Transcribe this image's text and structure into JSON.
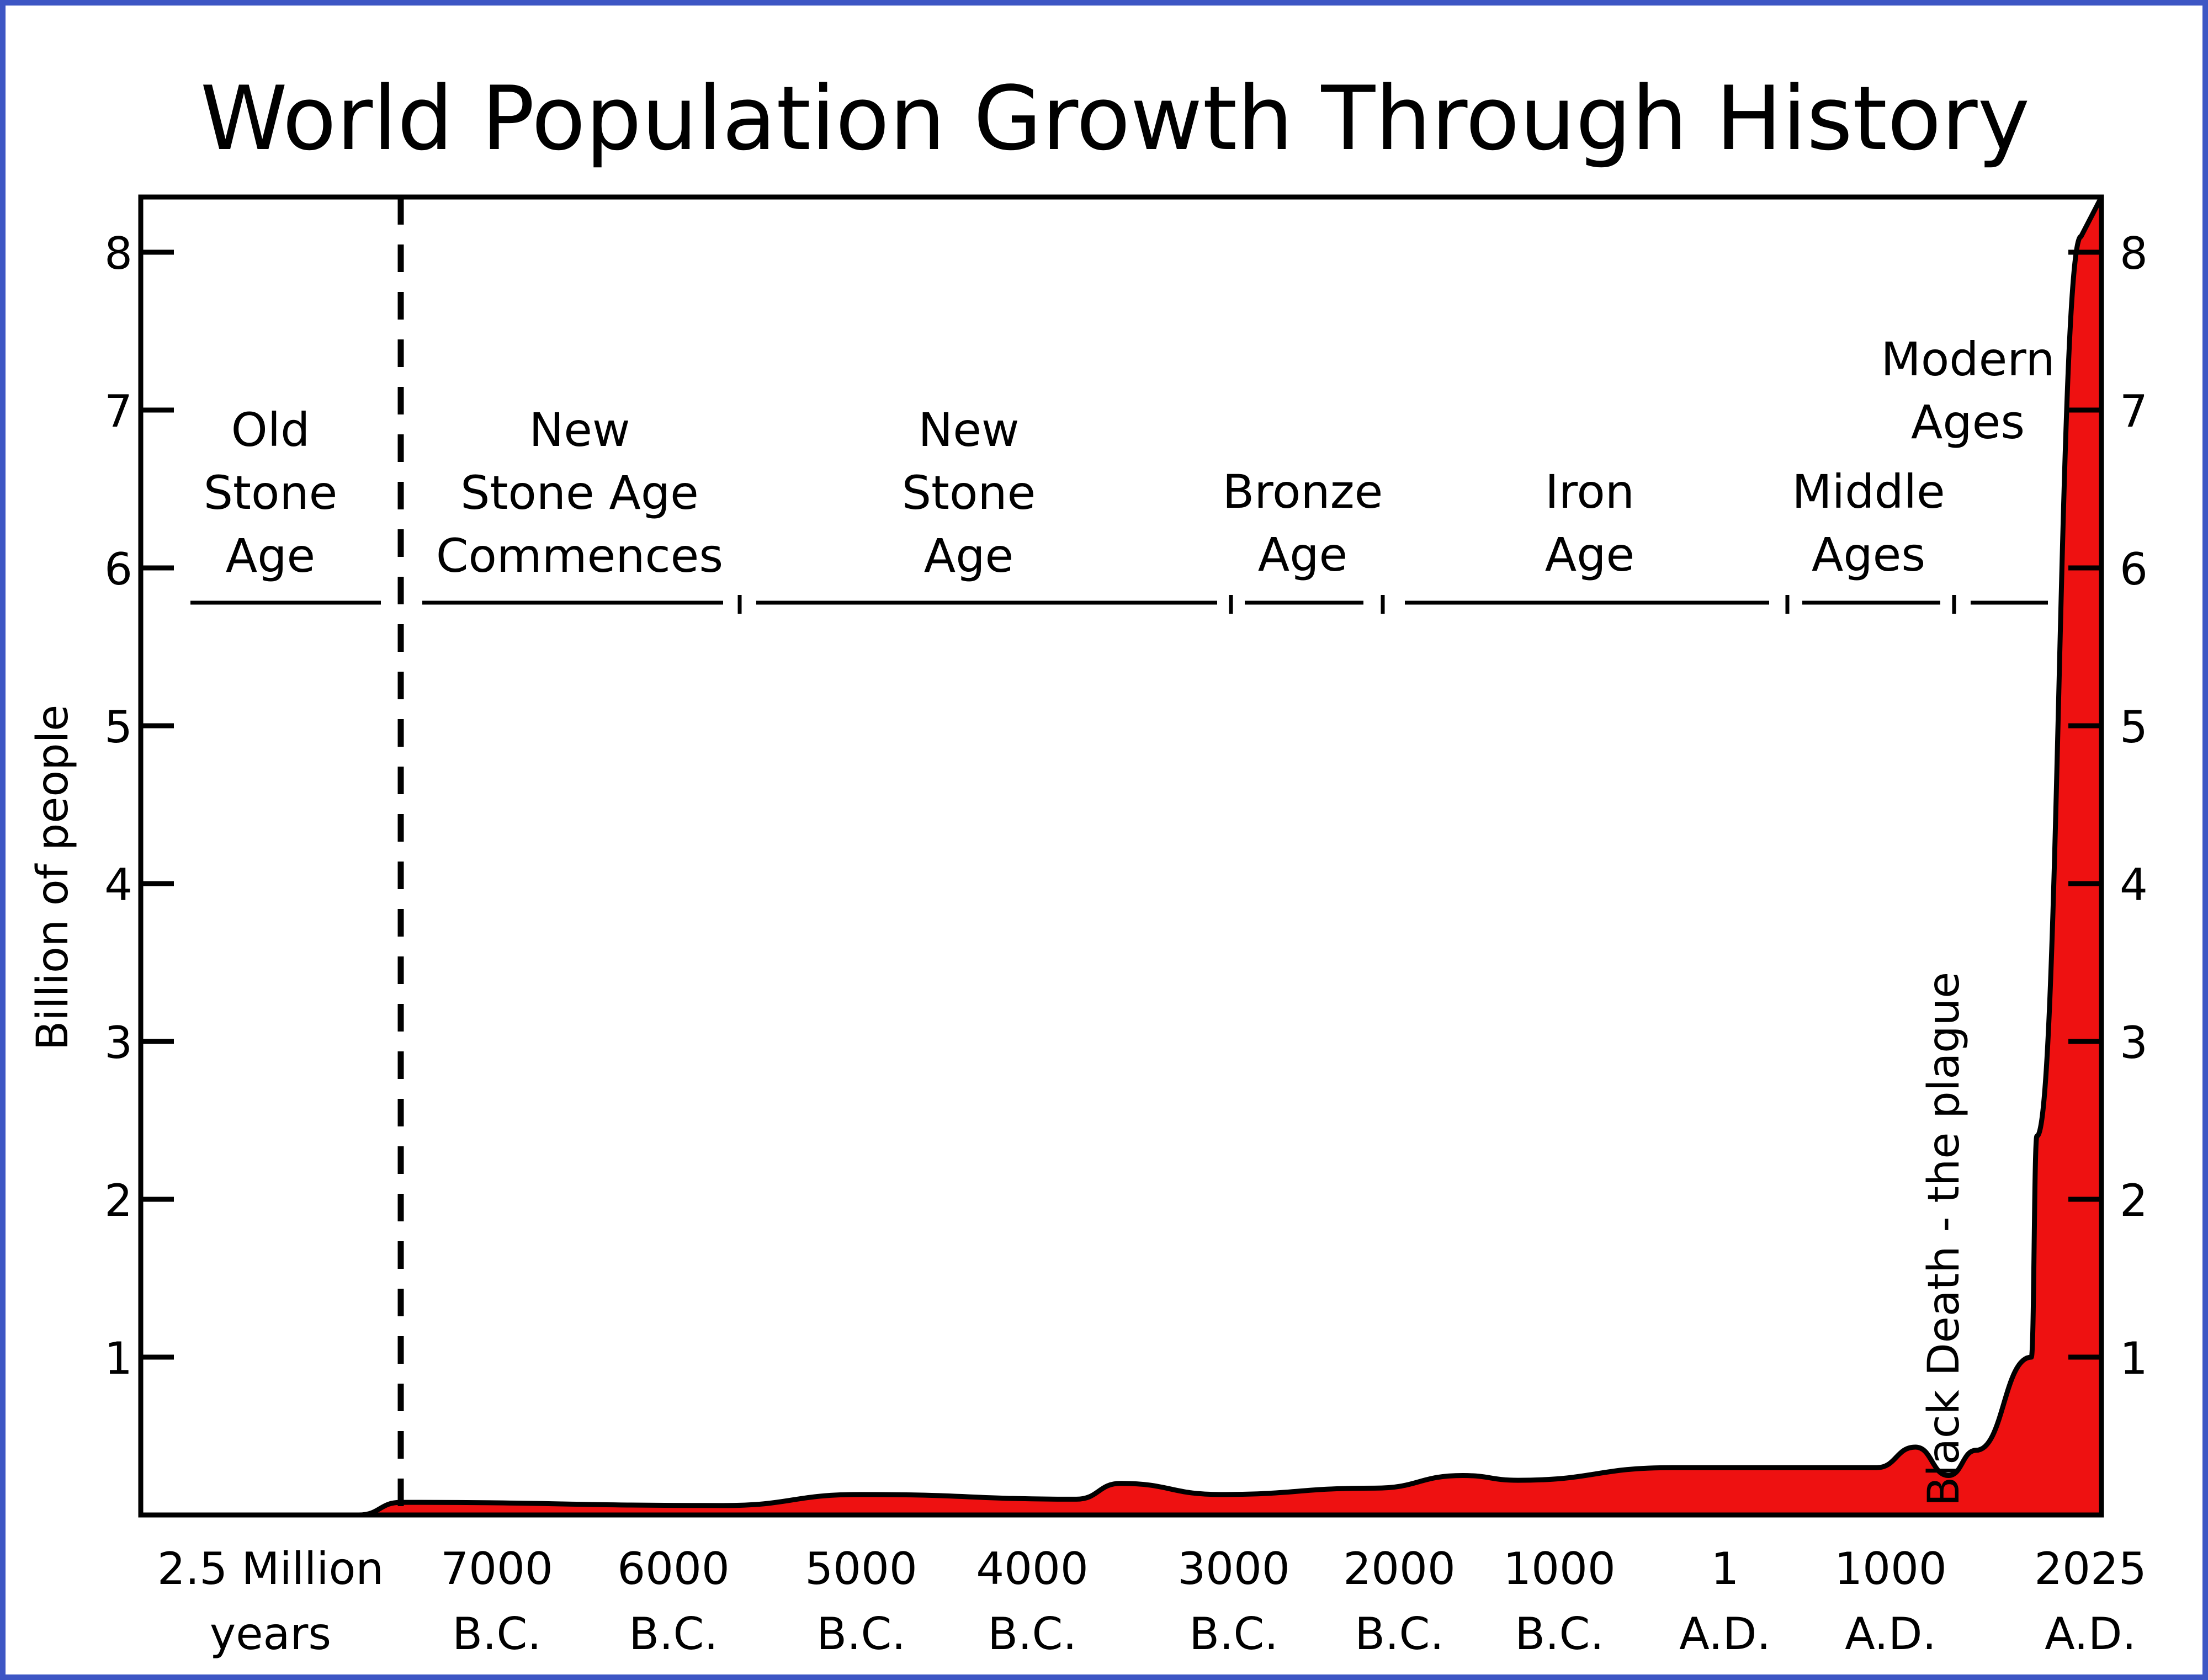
{
  "chart_data": {
    "type": "area",
    "title": "World Population Growth Through History",
    "ylabel": "Billion of people",
    "ylim": [
      0,
      8.5
    ],
    "y_ticks": [
      1,
      2,
      3,
      4,
      5,
      6,
      7,
      8
    ],
    "y_tick_labels_right": true,
    "grid": false,
    "colors": {
      "area_fill": "#ee1111",
      "outline": "#000000",
      "frame_border": "#3d56c4"
    },
    "x_tick_labels": [
      {
        "line1": "2.5 Million",
        "line2": "years"
      },
      {
        "line1": "7000",
        "line2": "B.C."
      },
      {
        "line1": "6000",
        "line2": "B.C."
      },
      {
        "line1": "5000",
        "line2": "B.C."
      },
      {
        "line1": "4000",
        "line2": "B.C."
      },
      {
        "line1": "3000",
        "line2": "B.C."
      },
      {
        "line1": "2000",
        "line2": "B.C."
      },
      {
        "line1": "1000",
        "line2": "B.C."
      },
      {
        "line1": "1",
        "line2": "A.D."
      },
      {
        "line1": "1000",
        "line2": "A.D."
      },
      {
        "line1": "2025",
        "line2": "A.D."
      }
    ],
    "eras": [
      {
        "lines": [
          "Old",
          "Stone",
          "Age"
        ]
      },
      {
        "lines": [
          "New",
          "Stone Age",
          "Commences"
        ]
      },
      {
        "lines": [
          "New",
          "Stone",
          "Age"
        ]
      },
      {
        "lines": [
          "Bronze",
          "Age"
        ]
      },
      {
        "lines": [
          "Iron",
          "Age"
        ]
      },
      {
        "lines": [
          "Middle",
          "Ages"
        ]
      },
      {
        "lines": [
          "Modern",
          "Ages"
        ]
      }
    ],
    "annotations": [
      {
        "text": "Black Death - the plague",
        "x": "1350 A.D."
      }
    ],
    "series": [
      {
        "points": [
          {
            "x": "2.5 Million years",
            "y": 0.0
          },
          {
            "x": "7000 B.C.",
            "y": 0.08
          },
          {
            "x": "6000 B.C.",
            "y": 0.06
          },
          {
            "x": "5000 B.C.",
            "y": 0.13
          },
          {
            "x": "4000 B.C.",
            "y": 0.1
          },
          {
            "x": "3500 B.C.",
            "y": 0.2
          },
          {
            "x": "3000 B.C.",
            "y": 0.13
          },
          {
            "x": "2000 B.C.",
            "y": 0.17
          },
          {
            "x": "1500 B.C.",
            "y": 0.25
          },
          {
            "x": "1000 B.C.",
            "y": 0.22
          },
          {
            "x": "1 A.D.",
            "y": 0.3
          },
          {
            "x": "1000 A.D.",
            "y": 0.3
          },
          {
            "x": "1300 A.D.",
            "y": 0.43
          },
          {
            "x": "1350 A.D.",
            "y": 0.25
          },
          {
            "x": "1400 A.D.",
            "y": 0.41
          },
          {
            "x": "1800 A.D.",
            "y": 1.0
          },
          {
            "x": "1950 A.D.",
            "y": 2.4
          },
          {
            "x": "2025 A.D.",
            "y": 8.1
          }
        ]
      }
    ]
  }
}
